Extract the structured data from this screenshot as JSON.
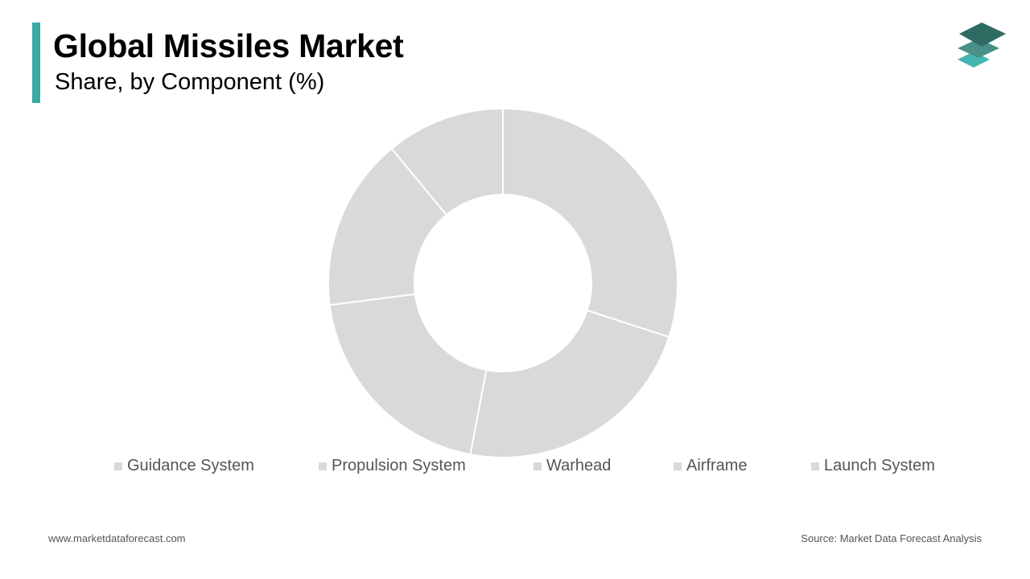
{
  "header": {
    "title": "Global Missiles Market",
    "subtitle": "Share, by Component (%)"
  },
  "colors": {
    "accent": "#3aa8a4",
    "slice": "#d9d9d9",
    "slice_border": "#ffffff",
    "legend_text": "#555555",
    "logo_top": "#2e6b63",
    "logo_middle": "#4a9088",
    "logo_bottom": "#46b5b0"
  },
  "chart_data": {
    "type": "pie",
    "donut": true,
    "title": "Share, by Component (%)",
    "categories": [
      "Guidance System",
      "Propulsion System",
      "Warhead",
      "Airframe",
      "Launch System"
    ],
    "values": [
      30,
      23,
      20,
      16,
      11
    ],
    "legend_position": "bottom",
    "data_labels": false
  },
  "footer": {
    "website": "www.marketdataforecast.com",
    "source": "Source: Market Data Forecast Analysis"
  }
}
